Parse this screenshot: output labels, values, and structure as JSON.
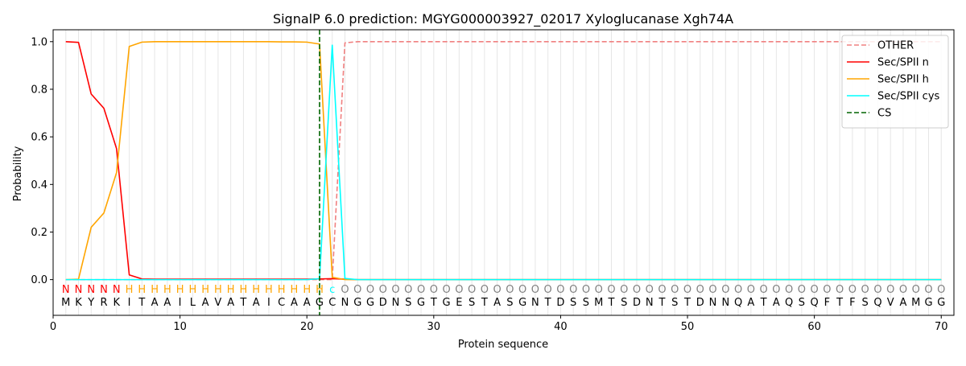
{
  "chart_data": {
    "type": "line",
    "title": "SignalP 6.0 prediction: MGYG000003927_02017 Xyloglucanase Xgh74A",
    "xlabel": "Protein sequence",
    "ylabel": "Probability",
    "xlim": [
      0,
      71
    ],
    "ylim": [
      -0.15,
      1.05
    ],
    "x_ticks": [
      0,
      10,
      20,
      30,
      40,
      50,
      60,
      70
    ],
    "y_ticks": [
      0.0,
      0.2,
      0.4,
      0.6,
      0.8,
      1.0
    ],
    "x_tick_labels": [
      "0",
      "10",
      "20",
      "30",
      "40",
      "50",
      "60",
      "70"
    ],
    "y_tick_labels": [
      "0.0",
      "0.2",
      "0.4",
      "0.6",
      "0.8",
      "1.0"
    ],
    "grid": "vertical lines at each residue",
    "legend_position": "top-right",
    "sequence": "MKYRKITAAILAVATAICAAGCNGGDNSGTGESTASGNTDSSMTSDNTSTDNNQATAQSQFTFSQVAMGG",
    "labels": "NNNNNHHHHHHHHHHHHHHHHcOOOOOOOOOOOOOOOOOOOOOOOOOOOOOOOOOOOOOOOOOOOOOOOO",
    "label_colors": {
      "N": "#ff0000",
      "H": "#ffa500",
      "c": "#00ffff",
      "O": "#808080"
    },
    "series": [
      {
        "name": "OTHER",
        "color": "#f08080",
        "dash": "dashed",
        "values": [
          0,
          0,
          0,
          0,
          0,
          0,
          0,
          0,
          0,
          0,
          0,
          0,
          0,
          0,
          0,
          0,
          0,
          0,
          0,
          0,
          0,
          0,
          0.995,
          1,
          1,
          1,
          1,
          1,
          1,
          1,
          1,
          1,
          1,
          1,
          1,
          1,
          1,
          1,
          1,
          1,
          1,
          1,
          1,
          1,
          1,
          1,
          1,
          1,
          1,
          1,
          1,
          1,
          1,
          1,
          1,
          1,
          1,
          1,
          1,
          1,
          1,
          1,
          1,
          1,
          1,
          1,
          1,
          1,
          1,
          1
        ]
      },
      {
        "name": "Sec/SPII n",
        "color": "#ff0000",
        "dash": "solid",
        "values": [
          1.0,
          0.997,
          0.78,
          0.72,
          0.55,
          0.02,
          0.003,
          0.002,
          0.002,
          0.002,
          0.002,
          0.002,
          0.002,
          0.002,
          0.002,
          0.002,
          0.002,
          0.002,
          0.002,
          0.002,
          0.003,
          0.004,
          0.002,
          0,
          0,
          0,
          0,
          0,
          0,
          0,
          0,
          0,
          0,
          0,
          0,
          0,
          0,
          0,
          0,
          0,
          0,
          0,
          0,
          0,
          0,
          0,
          0,
          0,
          0,
          0,
          0,
          0,
          0,
          0,
          0,
          0,
          0,
          0,
          0,
          0,
          0,
          0,
          0,
          0,
          0,
          0,
          0,
          0,
          0,
          0
        ]
      },
      {
        "name": "Sec/SPII h",
        "color": "#ffa500",
        "dash": "solid",
        "values": [
          0,
          0.002,
          0.22,
          0.28,
          0.45,
          0.98,
          0.998,
          1.0,
          1.0,
          1.0,
          1.0,
          1.0,
          1.0,
          1.0,
          1.0,
          1.0,
          1.0,
          0.999,
          0.999,
          0.998,
          0.99,
          0.01,
          0,
          0,
          0,
          0,
          0,
          0,
          0,
          0,
          0,
          0,
          0,
          0,
          0,
          0,
          0,
          0,
          0,
          0,
          0,
          0,
          0,
          0,
          0,
          0,
          0,
          0,
          0,
          0,
          0,
          0,
          0,
          0,
          0,
          0,
          0,
          0,
          0,
          0,
          0,
          0,
          0,
          0,
          0,
          0,
          0,
          0,
          0,
          0
        ]
      },
      {
        "name": "Sec/SPII cys",
        "color": "#00ffff",
        "dash": "solid",
        "values": [
          0,
          0,
          0,
          0,
          0,
          0,
          0,
          0,
          0,
          0,
          0,
          0,
          0,
          0,
          0,
          0,
          0,
          0,
          0,
          0,
          0.004,
          0.985,
          0.005,
          0,
          0,
          0,
          0,
          0,
          0,
          0,
          0,
          0,
          0,
          0,
          0,
          0,
          0,
          0,
          0,
          0,
          0,
          0,
          0,
          0,
          0,
          0,
          0,
          0,
          0,
          0,
          0,
          0,
          0,
          0,
          0,
          0,
          0,
          0,
          0,
          0,
          0,
          0,
          0,
          0,
          0,
          0,
          0,
          0,
          0,
          0
        ]
      }
    ],
    "cleavage_site": {
      "name": "CS",
      "x": 21,
      "color": "#006400",
      "dash": "dashed"
    }
  }
}
